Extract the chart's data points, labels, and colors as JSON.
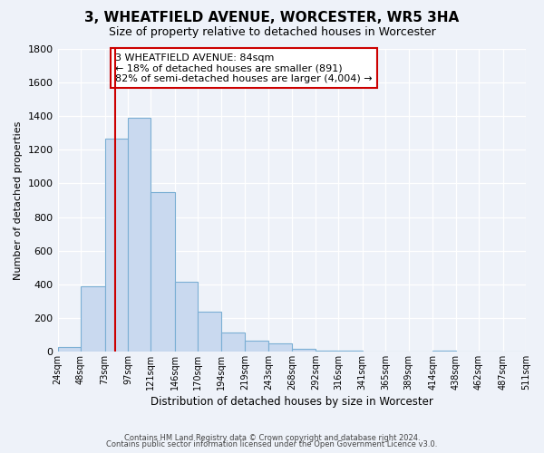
{
  "title": "3, WHEATFIELD AVENUE, WORCESTER, WR5 3HA",
  "subtitle": "Size of property relative to detached houses in Worcester",
  "xlabel": "Distribution of detached houses by size in Worcester",
  "ylabel": "Number of detached properties",
  "bar_values": [
    25,
    385,
    1265,
    1390,
    950,
    415,
    235,
    110,
    65,
    50,
    15,
    5,
    5,
    0,
    0,
    0,
    5,
    0,
    0,
    0
  ],
  "bin_edges": [
    24,
    48,
    73,
    97,
    121,
    146,
    170,
    194,
    219,
    243,
    268,
    292,
    316,
    341,
    365,
    389,
    414,
    438,
    462,
    487,
    511
  ],
  "bin_labels": [
    "24sqm",
    "48sqm",
    "73sqm",
    "97sqm",
    "121sqm",
    "146sqm",
    "170sqm",
    "194sqm",
    "219sqm",
    "243sqm",
    "268sqm",
    "292sqm",
    "316sqm",
    "341sqm",
    "365sqm",
    "389sqm",
    "414sqm",
    "438sqm",
    "462sqm",
    "487sqm",
    "511sqm"
  ],
  "bar_color": "#c9d9ef",
  "bar_edge_color": "#7bafd4",
  "vline_x": 84,
  "vline_color": "#cc0000",
  "ylim": [
    0,
    1800
  ],
  "yticks": [
    0,
    200,
    400,
    600,
    800,
    1000,
    1200,
    1400,
    1600,
    1800
  ],
  "annotation_text": "3 WHEATFIELD AVENUE: 84sqm\n← 18% of detached houses are smaller (891)\n82% of semi-detached houses are larger (4,004) →",
  "annotation_box_color": "#ffffff",
  "annotation_box_edge": "#cc0000",
  "footer_line1": "Contains HM Land Registry data © Crown copyright and database right 2024.",
  "footer_line2": "Contains public sector information licensed under the Open Government Licence v3.0.",
  "background_color": "#eef2f9"
}
